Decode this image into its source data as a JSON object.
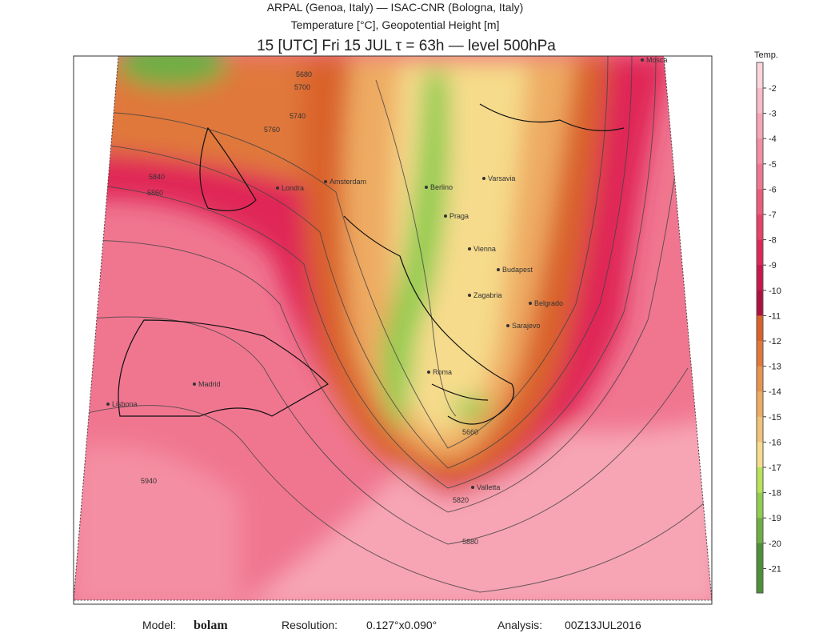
{
  "header": {
    "line1": "ARPAL (Genoa, Italy)  —  ISAC-CNR (Bologna, Italy)",
    "line2": "Temperature [°C], Geopotential Height [m]",
    "line3": "15 [UTC] Fri 15 JUL   τ = 63h   —   level 500hPa"
  },
  "colorbar": {
    "title": "Temp.",
    "levels": [
      -2,
      -3,
      -4,
      -5,
      -6,
      -7,
      -8,
      -9,
      -10,
      -11,
      -12,
      -13,
      -14,
      -15,
      -16,
      -17,
      -18,
      -19,
      -20,
      -21
    ],
    "colors": [
      "#fcd4dc",
      "#f9bcc8",
      "#f7a5b5",
      "#f48ea2",
      "#f07690",
      "#ec5c7a",
      "#e84268",
      "#e02656",
      "#c8174a",
      "#b01040",
      "#d9622a",
      "#e0783a",
      "#e8944e",
      "#eeab62",
      "#f2c27a",
      "#f6db8c",
      "#b6e35a",
      "#92cc50",
      "#6fae44",
      "#4f8f3a"
    ]
  },
  "map": {
    "cities": [
      "Londra",
      "Amsterdam",
      "Berlino",
      "Varsavia",
      "Praga",
      "Vienna",
      "Budapest",
      "Zagabria",
      "Belgrado",
      "Sarajevo",
      "Roma",
      "Madrid",
      "Lisbona",
      "Valletta",
      "Mosca"
    ],
    "contours": [
      "5680",
      "5700",
      "5740",
      "5760",
      "5840",
      "5860",
      "5940",
      "5820",
      "5880",
      "5660"
    ]
  },
  "footer": {
    "model_label": "Model:",
    "model": "bolam",
    "resolution_label": "Resolution:",
    "resolution": "0.127°x0.090°",
    "analysis_label": "Analysis:",
    "analysis": "00Z13JUL2016"
  }
}
